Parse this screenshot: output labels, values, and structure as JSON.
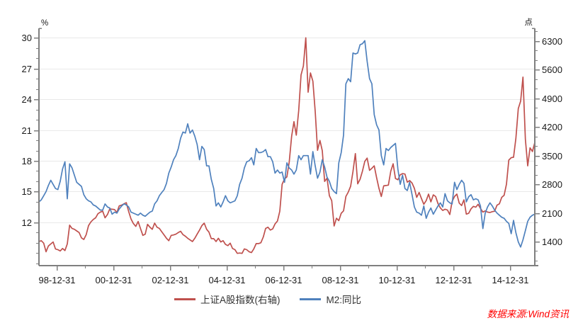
{
  "watermark": {
    "text": "数据来源:Wind资讯",
    "color": "#ff0000"
  },
  "legend": [
    {
      "label": "上证A股指数(右轴)",
      "color": "#bf504d"
    },
    {
      "label": "M2:同比",
      "color": "#4f81bd"
    }
  ],
  "theme": {
    "axis_color": "#7f7f7f",
    "grid_color": "#e9e9e9",
    "tick_label_color": "#1a1a1a",
    "background": "#ffffff"
  },
  "chart_data": {
    "type": "line",
    "title": "",
    "grid": "horizontal-major",
    "legend_position": "bottom-center",
    "x_start": 1998.375,
    "x_step": 0.0833333,
    "x_axis": {
      "range": [
        1998.375,
        2015.875
      ],
      "tick_labels": [
        "98-12-31",
        "00-12-31",
        "02-12-31",
        "04-12-31",
        "06-12-31",
        "08-12-31",
        "10-12-31",
        "12-12-31",
        "14-12-31"
      ],
      "tick_positions": [
        1999,
        2001,
        2003,
        2005,
        2007,
        2009,
        2011,
        2013,
        2015
      ],
      "minor_positions": [
        2000,
        2002,
        2004,
        2006,
        2008,
        2010,
        2012,
        2014,
        2016
      ]
    },
    "left_axis": {
      "unit": "%",
      "ticks": [
        30,
        27,
        24,
        21,
        18,
        15,
        12
      ],
      "minor_step": 1,
      "minor_from": 8,
      "minor_to": 30,
      "range": [
        7.79,
        30.9
      ]
    },
    "right_axis": {
      "unit": "点",
      "ticks": [
        6300,
        5600,
        4900,
        4200,
        3500,
        2800,
        2100,
        1400
      ],
      "minor_step": 233.333,
      "minor_base": 1400,
      "range": [
        811,
        6611
      ]
    },
    "series": [
      {
        "name": "上证A股指数(右轴)",
        "axis": "right",
        "color": "#bf504d",
        "values": [
          1400,
          1420,
          1360,
          1150,
          1290,
          1340,
          1390,
          1220,
          1200,
          1170,
          1230,
          1180,
          1340,
          1800,
          1720,
          1700,
          1660,
          1620,
          1490,
          1450,
          1570,
          1790,
          1880,
          1940,
          1980,
          2080,
          2120,
          2140,
          1980,
          2060,
          2200,
          2190,
          2180,
          2110,
          2270,
          2290,
          2320,
          2350,
          2130,
          1950,
          1840,
          1770,
          1890,
          1720,
          1550,
          1580,
          1820,
          1750,
          1700,
          1850,
          1750,
          1720,
          1640,
          1560,
          1480,
          1420,
          1550,
          1560,
          1580,
          1620,
          1650,
          1570,
          1530,
          1480,
          1440,
          1400,
          1480,
          1580,
          1680,
          1790,
          1850,
          1700,
          1630,
          1470,
          1470,
          1400,
          1480,
          1390,
          1420,
          1330,
          1300,
          1360,
          1230,
          1200,
          1110,
          1120,
          1110,
          1220,
          1200,
          1150,
          1130,
          1220,
          1350,
          1350,
          1370,
          1510,
          1720,
          1750,
          1680,
          1710,
          1830,
          1900,
          2140,
          2800,
          2930,
          2980,
          3340,
          3970,
          4330,
          4000,
          4600,
          5470,
          5690,
          6380,
          5050,
          5520,
          5320,
          4580,
          3630,
          3870,
          3620,
          2870,
          2950,
          2520,
          2400,
          1780,
          1970,
          1910,
          2090,
          2150,
          2500,
          2610,
          2750,
          3110,
          3550,
          2810,
          2920,
          3120,
          3360,
          3440,
          3140,
          3190,
          3250,
          2960,
          2700,
          2500,
          2760,
          2770,
          2780,
          3120,
          3300,
          2940,
          2910,
          3030,
          3060,
          3050,
          2850,
          2890,
          2830,
          2700,
          2480,
          2600,
          2450,
          2310,
          2400,
          2560,
          2370,
          2540,
          2500,
          2330,
          2220,
          2160,
          2190,
          2170,
          2060,
          2380,
          2500,
          2560,
          2340,
          2280,
          2420,
          2070,
          2090,
          2200,
          2260,
          2240,
          2310,
          2210,
          2120,
          2150,
          2120,
          2110,
          2130,
          2140,
          2290,
          2320,
          2480,
          2530,
          2800,
          3390,
          3450,
          3460,
          3920,
          4650,
          4830,
          5420,
          3900,
          3250,
          3690,
          3600,
          3820
        ]
      },
      {
        "name": "M2:同比",
        "axis": "left",
        "color": "#4f81bd",
        "values": [
          14.0,
          14.2,
          14.6,
          15.0,
          15.6,
          16.1,
          15.7,
          15.3,
          15.2,
          16.0,
          17.2,
          17.9,
          14.3,
          17.7,
          17.3,
          16.6,
          15.9,
          15.7,
          15.5,
          14.7,
          14.3,
          14.1,
          14.0,
          13.7,
          13.6,
          13.4,
          13.2,
          13.2,
          13.8,
          13.5,
          13.4,
          12.8,
          13.0,
          12.9,
          13.3,
          13.6,
          13.8,
          13.7,
          13.5,
          13.0,
          12.9,
          12.8,
          12.7,
          12.9,
          12.7,
          12.6,
          12.8,
          13.0,
          13.1,
          13.8,
          14.1,
          14.6,
          14.9,
          15.2,
          15.8,
          16.8,
          17.4,
          18.1,
          18.5,
          19.2,
          20.2,
          20.8,
          20.7,
          21.6,
          20.7,
          21.0,
          20.4,
          19.6,
          18.1,
          19.4,
          19.1,
          17.5,
          17.5,
          16.2,
          15.3,
          13.6,
          13.9,
          13.5,
          14.0,
          14.6,
          14.1,
          13.9,
          14.0,
          14.1,
          14.6,
          15.7,
          16.3,
          17.3,
          17.9,
          18.0,
          18.3,
          17.6,
          19.2,
          18.8,
          18.8,
          18.9,
          19.1,
          18.4,
          18.4,
          17.9,
          16.8,
          17.1,
          16.8,
          16.9,
          15.9,
          17.8,
          17.3,
          17.1,
          16.7,
          17.1,
          18.5,
          18.1,
          18.5,
          18.5,
          18.5,
          16.7,
          18.9,
          17.5,
          16.3,
          16.9,
          18.1,
          17.4,
          16.4,
          16.0,
          15.3,
          15.0,
          14.8,
          17.8,
          18.8,
          20.5,
          25.5,
          26.0,
          25.7,
          28.5,
          28.4,
          28.5,
          29.3,
          29.4,
          29.7,
          27.7,
          26.0,
          25.5,
          22.5,
          21.5,
          21.0,
          18.5,
          17.6,
          19.2,
          19.0,
          19.3,
          19.5,
          19.7,
          17.2,
          15.7,
          16.6,
          15.3,
          15.1,
          15.9,
          14.7,
          13.5,
          13.0,
          12.9,
          12.7,
          13.6,
          12.4,
          13.0,
          13.4,
          12.8,
          13.2,
          13.6,
          13.9,
          13.5,
          14.8,
          14.1,
          13.9,
          13.8,
          15.9,
          15.2,
          15.7,
          16.1,
          15.8,
          14.0,
          14.5,
          14.7,
          14.2,
          14.3,
          14.2,
          13.6,
          11.4,
          12.9,
          13.5,
          13.9,
          13.6,
          13.2,
          12.9,
          12.7,
          12.5,
          12.4,
          12.1,
          11.9,
          10.9,
          12.2,
          11.0,
          10.1,
          9.6,
          10.3,
          11.2,
          12.1,
          12.5,
          12.7,
          12.8
        ]
      }
    ]
  }
}
